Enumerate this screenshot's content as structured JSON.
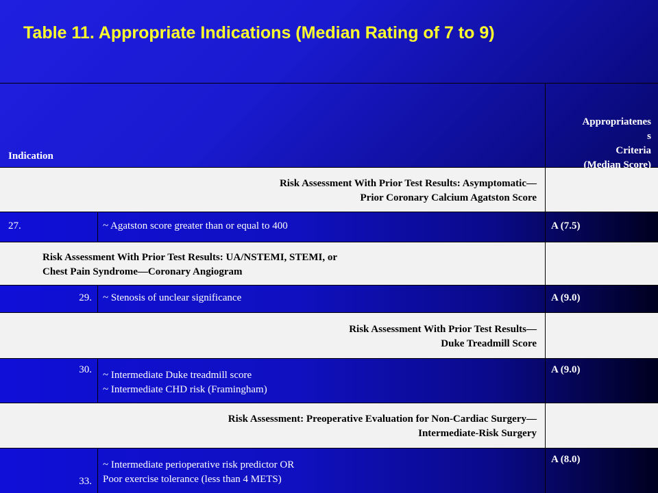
{
  "title": "Table 11. Appropriate Indications (Median Rating of 7 to 9)",
  "header": {
    "indication": "Indication",
    "criteria": "Appropriatenes\ns\nCriteria\n(Median Score)"
  },
  "sections": [
    {
      "heading": "Risk Assessment With Prior Test Results: Asymptomatic—\nPrior Coronary Calcium Agatston Score"
    },
    {
      "heading": "Risk Assessment With Prior Test Results: UA/NSTEMI, STEMI, or\nChest Pain Syndrome—Coronary Angiogram"
    },
    {
      "heading": "Risk Assessment With Prior Test Results—\nDuke Treadmill Score"
    },
    {
      "heading": "Risk Assessment:  Preoperative Evaluation for Non-Cardiac Surgery—\nIntermediate-Risk Surgery"
    }
  ],
  "rows": [
    {
      "number": "27.",
      "indication": "~ Agatston score greater than or equal to 400",
      "rating": "A (7.5)"
    },
    {
      "number": "29.",
      "indication": "~ Stenosis of unclear significance",
      "rating": "A (9.0)"
    },
    {
      "number": "30.",
      "indication": "~ Intermediate Duke treadmill score\n~ Intermediate CHD risk (Framingham)",
      "rating": "A (9.0)"
    },
    {
      "number": "33.",
      "indication": "~ Intermediate perioperative risk predictor OR\nPoor exercise tolerance (less than 4 METS)",
      "rating": "A (8.0)"
    }
  ],
  "colors": {
    "title": "#ffff2e",
    "background": "#1a1ad0",
    "section_bg": "#f2f2f2"
  }
}
